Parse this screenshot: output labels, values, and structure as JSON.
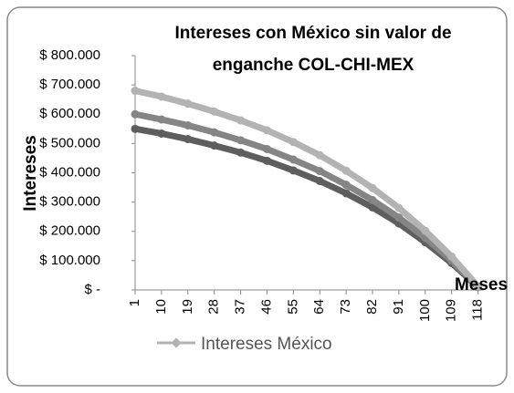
{
  "chart_data": {
    "type": "line",
    "title": "Intereses con México sin valor de enganche COL-CHI-MEX",
    "y_label": "Intereses",
    "x_label": "Meses",
    "x": [
      1,
      10,
      19,
      28,
      37,
      46,
      55,
      64,
      73,
      82,
      91,
      100,
      109,
      118
    ],
    "xlim": [
      1,
      120
    ],
    "xticks": [
      1,
      10,
      19,
      28,
      37,
      46,
      55,
      64,
      73,
      82,
      91,
      100,
      109,
      118
    ],
    "ylim": [
      0,
      800000
    ],
    "yticks": [
      {
        "value": 0,
        "label": "$ -"
      },
      {
        "value": 100000,
        "label": "$ 100.000"
      },
      {
        "value": 200000,
        "label": "$ 200.000"
      },
      {
        "value": 300000,
        "label": "$ 300.000"
      },
      {
        "value": 400000,
        "label": "$ 400.000"
      },
      {
        "value": 500000,
        "label": "$ 500.000"
      },
      {
        "value": 600000,
        "label": "$ 600.000"
      },
      {
        "value": 700000,
        "label": "$ 700.000"
      },
      {
        "value": 800000,
        "label": "$ 800.000"
      }
    ],
    "series": [
      {
        "name": "Intereses México",
        "color": "#b3b3b3",
        "values": [
          680000,
          660000,
          636000,
          609000,
          579000,
          545000,
          505000,
          460000,
          407000,
          348000,
          280000,
          202000,
          114000,
          12000
        ]
      },
      {
        "color": "#858585",
        "values": [
          600000,
          582000,
          562000,
          538000,
          511000,
          481000,
          445000,
          406000,
          359000,
          307000,
          247000,
          178000,
          100000,
          11000
        ]
      },
      {
        "color": "#5e5e5e",
        "values": [
          550000,
          534000,
          515000,
          493000,
          469000,
          441000,
          408000,
          372000,
          330000,
          282000,
          227000,
          163000,
          92000,
          10000
        ]
      }
    ]
  }
}
